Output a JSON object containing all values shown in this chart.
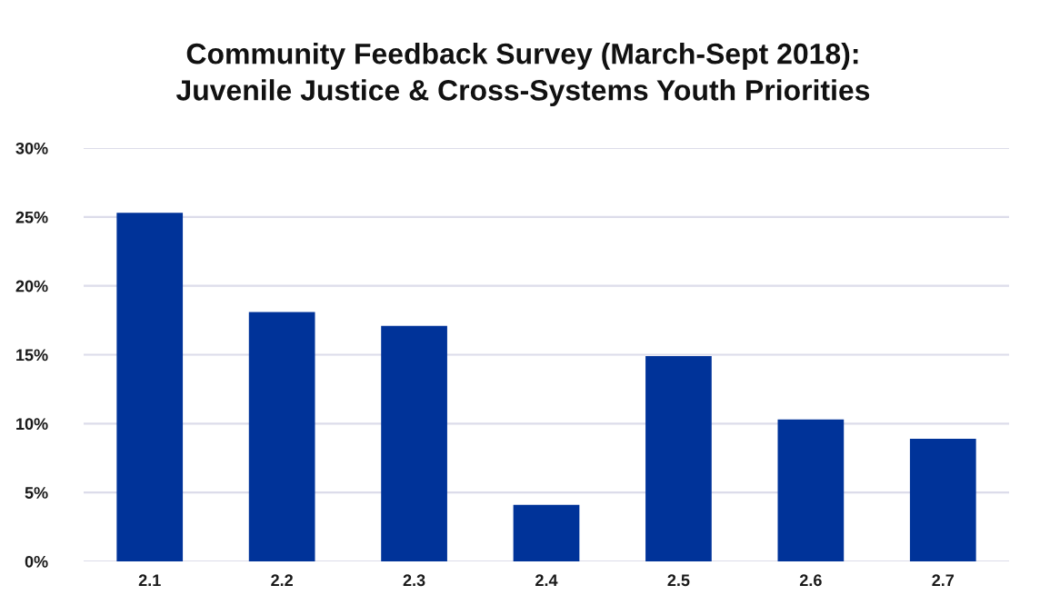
{
  "chart_data": {
    "type": "bar",
    "title": "Community Feedback Survey (March-Sept 2018):\nJuvenile Justice & Cross-Systems Youth Priorities",
    "categories": [
      "2.1",
      "2.2",
      "2.3",
      "2.4",
      "2.5",
      "2.6",
      "2.7"
    ],
    "values": [
      25.3,
      18.1,
      17.1,
      4.1,
      14.9,
      10.3,
      8.9
    ],
    "color": "#003399",
    "ylim": [
      0,
      30
    ],
    "yticks": [
      {
        "value": 0,
        "label": "0%"
      },
      {
        "value": 5,
        "label": "5%"
      },
      {
        "value": 10,
        "label": "10%"
      },
      {
        "value": 15,
        "label": "15%"
      },
      {
        "value": 20,
        "label": "20%"
      },
      {
        "value": 25,
        "label": "25%"
      },
      {
        "value": 30,
        "label": "30%"
      }
    ],
    "grid": "y",
    "legend": false
  }
}
